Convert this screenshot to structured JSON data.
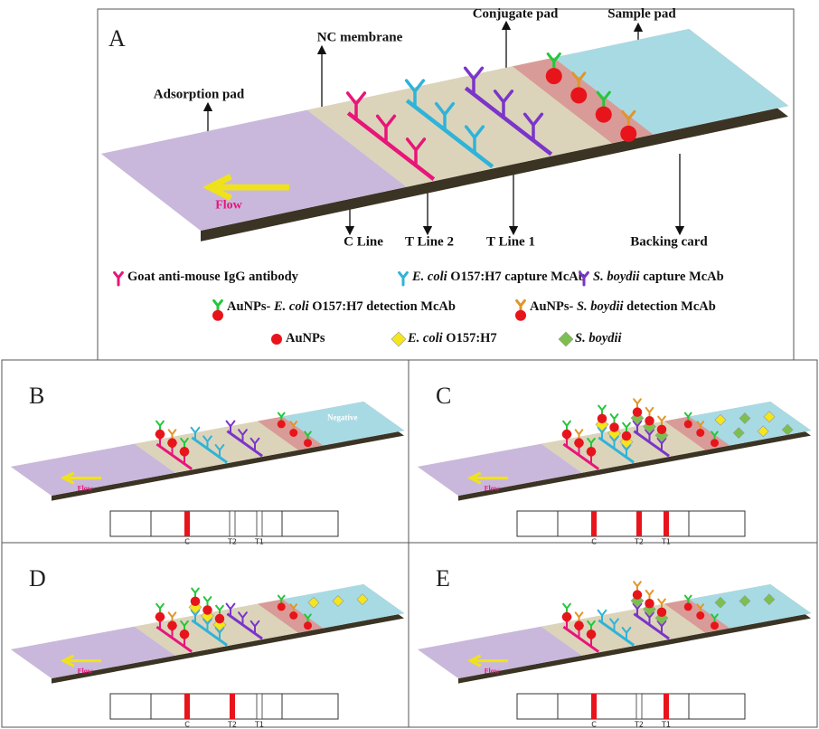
{
  "panel_a": {
    "label": "A",
    "conjugate_pad": "Conjugate pad",
    "sample_pad": "Sample pad",
    "nc_membrane": "NC membrane",
    "adsorption_pad": "Adsorption pad",
    "flow": "Flow",
    "c_line": "C Line",
    "t_line_2": "T Line 2",
    "t_line_1": "T Line 1",
    "backing_card": "Backing card"
  },
  "legend": [
    [
      {
        "parts": [
          {
            "text": "Goat anti-mouse IgG antibody"
          }
        ]
      },
      {
        "parts": [
          {
            "text": "E. coli",
            "italic": true
          },
          {
            "text": " O157:H7 capture McAb"
          }
        ]
      },
      {
        "parts": [
          {
            "text": "S. boydii",
            "italic": true
          },
          {
            "text": " capture McAb"
          }
        ]
      }
    ],
    [
      {
        "parts": [
          {
            "text": "AuNPs- "
          },
          {
            "text": "E. coli",
            "italic": true
          },
          {
            "text": " O157:H7 detection McAb"
          }
        ]
      },
      {
        "parts": [
          {
            "text": "AuNPs- "
          },
          {
            "text": "S. boydii",
            "italic": true
          },
          {
            "text": " detection McAb"
          }
        ]
      }
    ],
    [
      {
        "parts": [
          {
            "text": "AuNPs"
          }
        ]
      },
      {
        "parts": [
          {
            "text": "E. coli",
            "italic": true
          },
          {
            "text": " O157:H7"
          }
        ]
      },
      {
        "parts": [
          {
            "text": "S. boydii",
            "italic": true
          }
        ]
      }
    ]
  ],
  "panels": [
    {
      "label": "B",
      "sample_label": "Negative",
      "flow": "Flow",
      "strip_labels": [
        "C",
        "T2",
        "T1"
      ]
    },
    {
      "label": "C",
      "flow": "Flow",
      "strip_labels": [
        "C",
        "T2",
        "T1"
      ]
    },
    {
      "label": "D",
      "flow": "Flow",
      "strip_labels": [
        "C",
        "T2",
        "T1"
      ]
    },
    {
      "label": "E",
      "flow": "Flow",
      "strip_labels": [
        "C",
        "T2",
        "T1"
      ]
    }
  ]
}
